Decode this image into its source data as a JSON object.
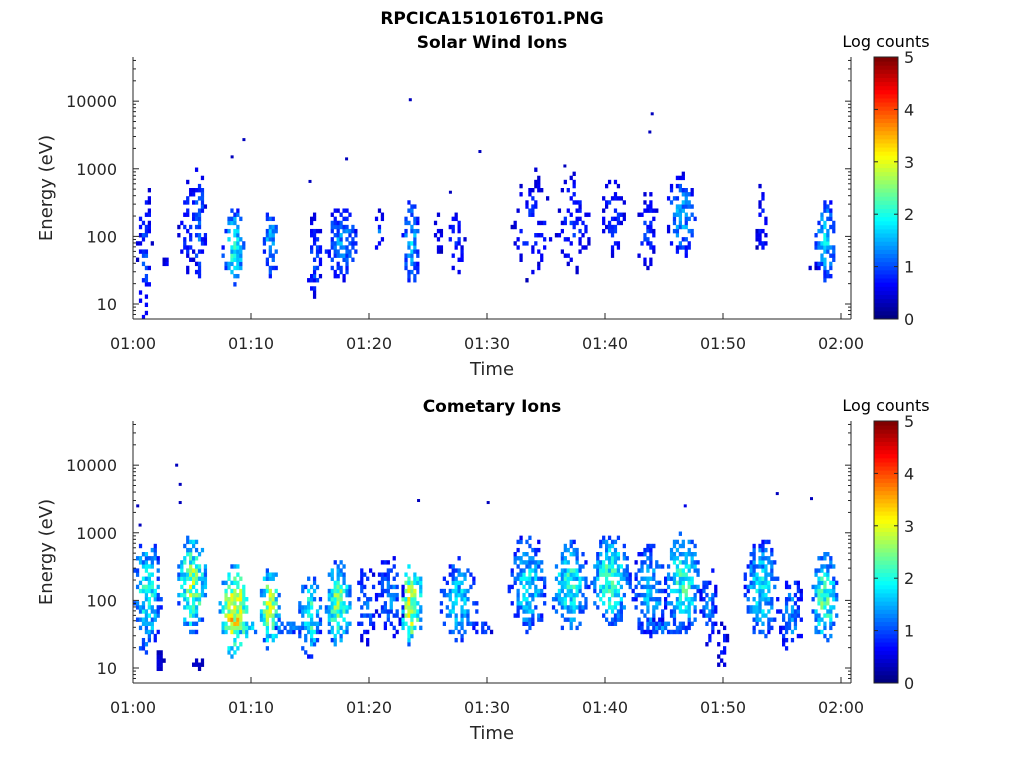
{
  "figure": {
    "title": "RPCICA151016T01.PNG"
  },
  "colorbar": {
    "title": "Log counts",
    "range": [
      0,
      5
    ],
    "ticks": [
      "0",
      "1",
      "2",
      "3",
      "4",
      "5"
    ],
    "colormap": "jet"
  },
  "chart_data": [
    {
      "type": "heatmap",
      "title": "Solar Wind Ions",
      "xlabel": "Time",
      "ylabel": "Energy (eV)",
      "x_range": [
        "01:00",
        "02:00"
      ],
      "x_ticks": [
        "01:00",
        "01:10",
        "01:20",
        "01:30",
        "01:40",
        "01:50",
        "02:00"
      ],
      "y_scale": "log",
      "y_range": [
        6,
        45000
      ],
      "y_ticks": [
        "10",
        "100",
        "1000",
        "10000"
      ],
      "clusters": [
        {
          "t": 1.0,
          "e": 60,
          "w": 0.5,
          "sd": 0.9,
          "peak": 1.1,
          "fill": 0.5
        },
        {
          "t": 2.8,
          "e": 40,
          "w": 0.2,
          "sd": 0.1,
          "peak": 0.8,
          "fill": 0.6
        },
        {
          "t": 4.6,
          "e": 150,
          "w": 0.6,
          "sd": 0.6,
          "peak": 1.0,
          "fill": 0.45
        },
        {
          "t": 5.6,
          "e": 150,
          "w": 0.5,
          "sd": 0.7,
          "peak": 1.3,
          "fill": 0.6
        },
        {
          "t": 8.6,
          "e": 70,
          "w": 0.8,
          "sd": 0.45,
          "peak": 2.2,
          "fill": 0.8
        },
        {
          "t": 11.7,
          "e": 80,
          "w": 0.5,
          "sd": 0.4,
          "peak": 1.8,
          "fill": 0.75
        },
        {
          "t": 15.4,
          "e": 50,
          "w": 0.5,
          "sd": 0.5,
          "peak": 1.2,
          "fill": 0.7
        },
        {
          "t": 17.7,
          "e": 80,
          "w": 1.2,
          "sd": 0.45,
          "peak": 1.5,
          "fill": 0.6
        },
        {
          "t": 20.9,
          "e": 110,
          "w": 0.3,
          "sd": 0.3,
          "peak": 1.2,
          "fill": 0.6
        },
        {
          "t": 23.6,
          "e": 80,
          "w": 0.6,
          "sd": 0.5,
          "peak": 1.8,
          "fill": 0.7
        },
        {
          "t": 25.9,
          "e": 110,
          "w": 0.3,
          "sd": 0.3,
          "peak": 0.8,
          "fill": 0.5
        },
        {
          "t": 27.4,
          "e": 80,
          "w": 0.6,
          "sd": 0.4,
          "peak": 1.0,
          "fill": 0.5
        },
        {
          "t": 33.8,
          "e": 150,
          "w": 1.5,
          "sd": 0.7,
          "peak": 0.9,
          "fill": 0.25
        },
        {
          "t": 37.3,
          "e": 150,
          "w": 1.2,
          "sd": 0.6,
          "peak": 1.0,
          "fill": 0.35
        },
        {
          "t": 40.7,
          "e": 200,
          "w": 0.8,
          "sd": 0.5,
          "peak": 1.0,
          "fill": 0.45
        },
        {
          "t": 43.6,
          "e": 120,
          "w": 0.7,
          "sd": 0.5,
          "peak": 1.0,
          "fill": 0.45
        },
        {
          "t": 46.5,
          "e": 200,
          "w": 1.0,
          "sd": 0.5,
          "peak": 1.6,
          "fill": 0.5
        },
        {
          "t": 53.3,
          "e": 150,
          "w": 0.4,
          "sd": 0.5,
          "peak": 0.9,
          "fill": 0.5
        },
        {
          "t": 58.7,
          "e": 90,
          "w": 0.7,
          "sd": 0.5,
          "peak": 1.9,
          "fill": 0.7
        },
        {
          "t": 57.6,
          "e": 40,
          "w": 0.3,
          "sd": 0.1,
          "peak": 0.8,
          "fill": 0.6
        }
      ],
      "points": [
        {
          "t": 23.5,
          "e": 10500,
          "v": 0.3
        },
        {
          "t": 44.0,
          "e": 6500,
          "v": 0.3
        },
        {
          "t": 43.8,
          "e": 3500,
          "v": 0.3
        },
        {
          "t": 9.4,
          "e": 2700,
          "v": 0.3
        },
        {
          "t": 29.4,
          "e": 1800,
          "v": 0.3
        },
        {
          "t": 8.4,
          "e": 1500,
          "v": 0.3
        },
        {
          "t": 18.1,
          "e": 1400,
          "v": 0.3
        },
        {
          "t": 36.6,
          "e": 1100,
          "v": 0.3
        },
        {
          "t": 15.0,
          "e": 650,
          "v": 0.3
        },
        {
          "t": 26.9,
          "e": 450,
          "v": 0.3
        }
      ]
    },
    {
      "type": "heatmap",
      "title": "Cometary Ions",
      "xlabel": "Time",
      "ylabel": "Energy (eV)",
      "x_range": [
        "01:00",
        "02:00"
      ],
      "x_ticks": [
        "01:00",
        "01:10",
        "01:20",
        "01:30",
        "01:40",
        "01:50",
        "02:00"
      ],
      "y_scale": "log",
      "y_range": [
        6,
        45000
      ],
      "y_ticks": [
        "10",
        "100",
        "1000",
        "10000"
      ],
      "clusters": [
        {
          "t": 1.2,
          "e": 120,
          "w": 1.0,
          "sd": 0.7,
          "peak": 2.2,
          "fill": 0.8
        },
        {
          "t": 2.3,
          "e": 12,
          "w": 0.3,
          "sd": 0.15,
          "peak": 0.6,
          "fill": 0.7
        },
        {
          "t": 5.0,
          "e": 170,
          "w": 1.0,
          "sd": 0.6,
          "peak": 2.9,
          "fill": 0.85
        },
        {
          "t": 5.5,
          "e": 12,
          "w": 0.4,
          "sd": 0.1,
          "peak": 0.5,
          "fill": 0.8
        },
        {
          "t": 8.6,
          "e": 70,
          "w": 1.0,
          "sd": 0.55,
          "peak": 3.6,
          "fill": 0.9
        },
        {
          "t": 8.8,
          "e": 40,
          "w": 1.5,
          "sd": 0.1,
          "peak": 2.5,
          "fill": 0.9
        },
        {
          "t": 11.6,
          "e": 80,
          "w": 0.7,
          "sd": 0.5,
          "peak": 3.0,
          "fill": 0.85
        },
        {
          "t": 13.0,
          "e": 40,
          "w": 1.5,
          "sd": 0.1,
          "peak": 1.4,
          "fill": 0.85
        },
        {
          "t": 15.0,
          "e": 60,
          "w": 0.8,
          "sd": 0.5,
          "peak": 2.3,
          "fill": 0.85
        },
        {
          "t": 17.4,
          "e": 90,
          "w": 0.9,
          "sd": 0.5,
          "peak": 2.8,
          "fill": 0.85
        },
        {
          "t": 19.8,
          "e": 90,
          "w": 0.7,
          "sd": 0.5,
          "peak": 1.3,
          "fill": 0.6
        },
        {
          "t": 21.8,
          "e": 110,
          "w": 1.0,
          "sd": 0.5,
          "peak": 1.4,
          "fill": 0.6
        },
        {
          "t": 23.6,
          "e": 90,
          "w": 0.8,
          "sd": 0.5,
          "peak": 3.4,
          "fill": 0.9
        },
        {
          "t": 27.6,
          "e": 100,
          "w": 1.3,
          "sd": 0.5,
          "peak": 1.9,
          "fill": 0.7
        },
        {
          "t": 29.6,
          "e": 40,
          "w": 0.8,
          "sd": 0.1,
          "peak": 1.2,
          "fill": 0.7
        },
        {
          "t": 33.5,
          "e": 170,
          "w": 1.3,
          "sd": 0.6,
          "peak": 2.0,
          "fill": 0.75
        },
        {
          "t": 37.0,
          "e": 170,
          "w": 1.3,
          "sd": 0.55,
          "peak": 2.3,
          "fill": 0.8
        },
        {
          "t": 40.5,
          "e": 200,
          "w": 1.3,
          "sd": 0.55,
          "peak": 2.5,
          "fill": 0.8
        },
        {
          "t": 43.8,
          "e": 140,
          "w": 1.2,
          "sd": 0.55,
          "peak": 1.8,
          "fill": 0.7
        },
        {
          "t": 46.6,
          "e": 180,
          "w": 1.2,
          "sd": 0.6,
          "peak": 2.4,
          "fill": 0.8
        },
        {
          "t": 48.8,
          "e": 90,
          "w": 0.6,
          "sd": 0.5,
          "peak": 1.4,
          "fill": 0.6
        },
        {
          "t": 50.0,
          "e": 20,
          "w": 0.4,
          "sd": 0.3,
          "peak": 0.9,
          "fill": 0.7
        },
        {
          "t": 53.3,
          "e": 150,
          "w": 1.2,
          "sd": 0.6,
          "peak": 2.0,
          "fill": 0.75
        },
        {
          "t": 55.8,
          "e": 60,
          "w": 0.8,
          "sd": 0.5,
          "peak": 1.5,
          "fill": 0.7
        },
        {
          "t": 58.6,
          "e": 110,
          "w": 0.9,
          "sd": 0.55,
          "peak": 2.6,
          "fill": 0.85
        },
        {
          "t": 45.0,
          "e": 40,
          "w": 2.0,
          "sd": 0.1,
          "peak": 1.4,
          "fill": 0.85
        }
      ],
      "points": [
        {
          "t": 3.7,
          "e": 10000,
          "v": 0.3
        },
        {
          "t": 4.0,
          "e": 5200,
          "v": 0.3
        },
        {
          "t": 4.0,
          "e": 2800,
          "v": 0.3
        },
        {
          "t": 0.4,
          "e": 2500,
          "v": 0.3
        },
        {
          "t": 0.6,
          "e": 1300,
          "v": 0.3
        },
        {
          "t": 24.2,
          "e": 3000,
          "v": 0.3
        },
        {
          "t": 30.1,
          "e": 2800,
          "v": 0.3
        },
        {
          "t": 54.6,
          "e": 3800,
          "v": 0.3
        },
        {
          "t": 57.5,
          "e": 3200,
          "v": 0.3
        },
        {
          "t": 46.8,
          "e": 2500,
          "v": 0.5
        }
      ]
    }
  ]
}
